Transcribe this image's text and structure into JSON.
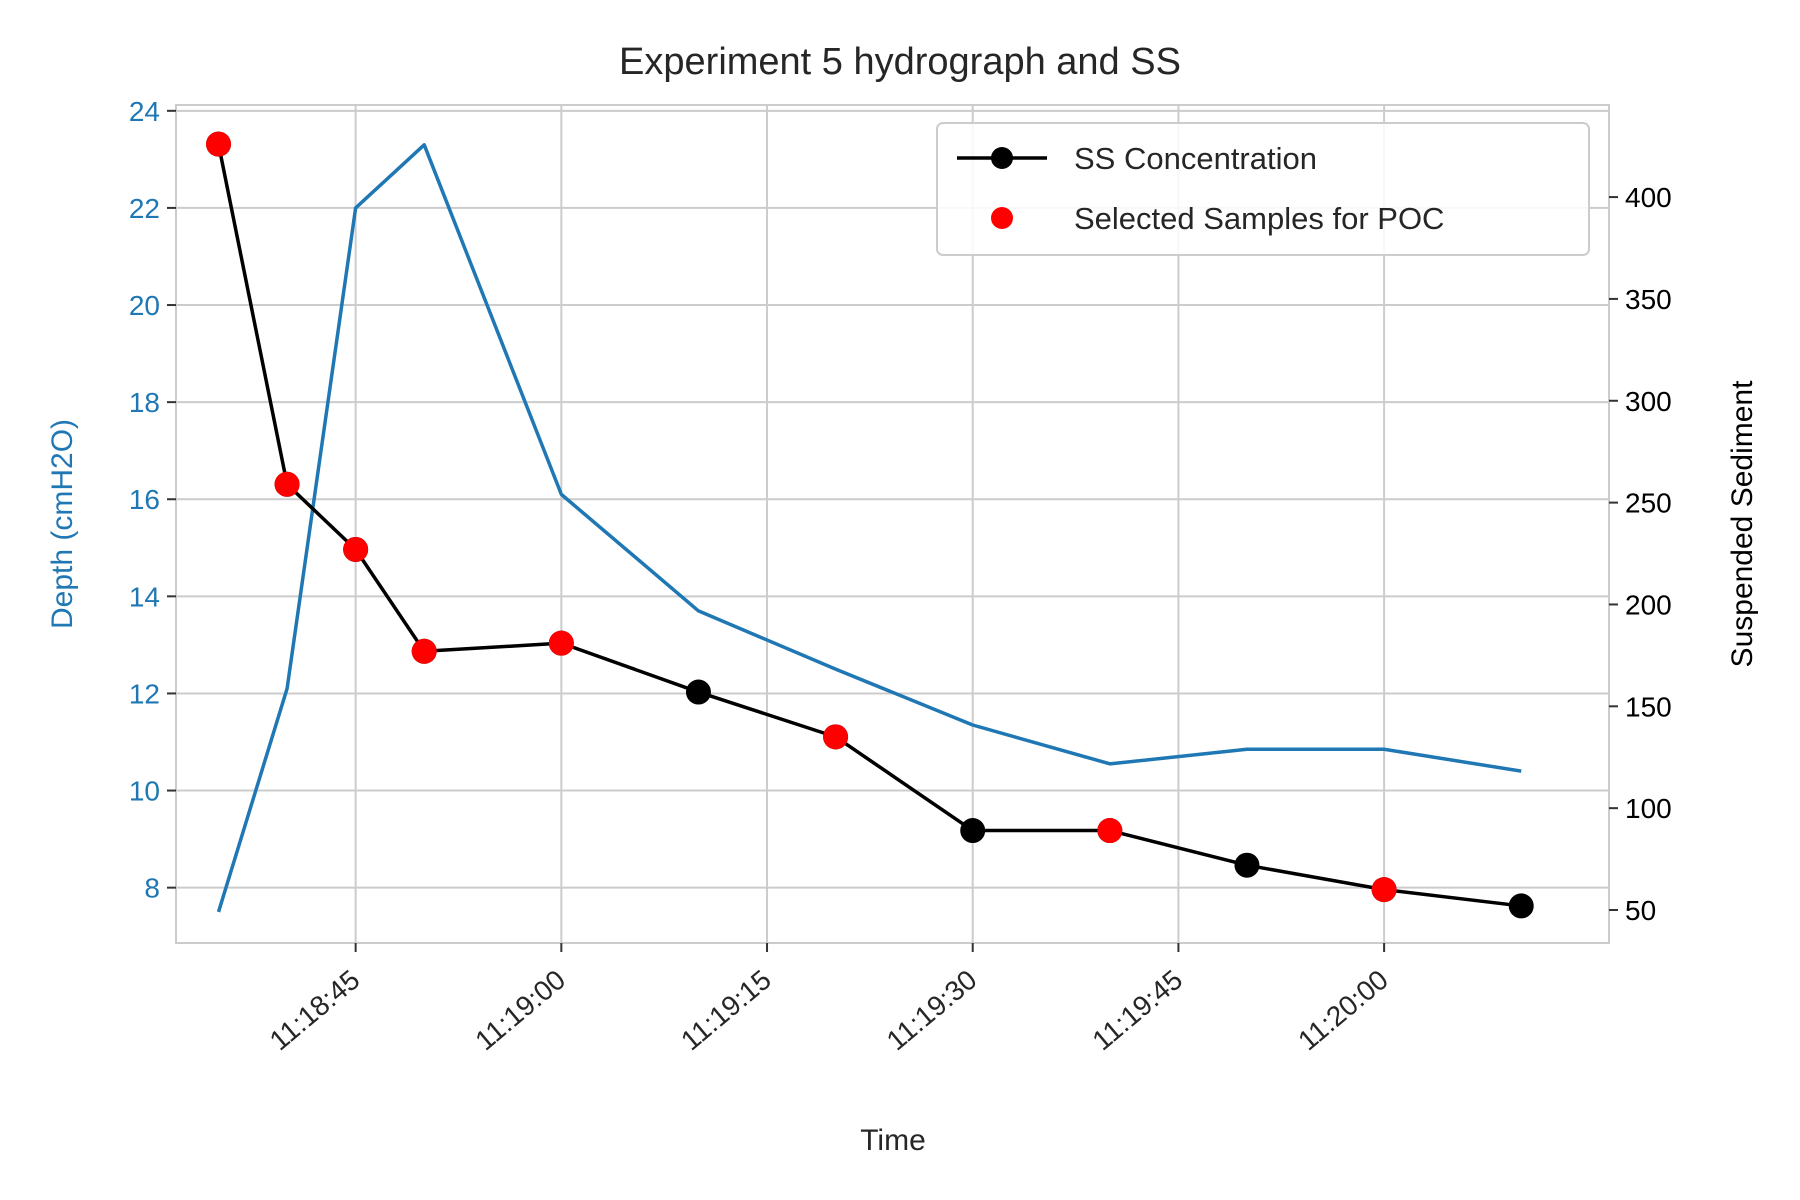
{
  "chart_data": {
    "type": "line",
    "title": "Experiment 5 hydrograph and SS",
    "xlabel": "Time",
    "ylabel_left": "Depth (cmH2O)",
    "ylabel_right": "Suspended Sediment",
    "x_ticks": [
      "11:18:45",
      "11:19:00",
      "11:19:15",
      "11:19:30",
      "11:19:45",
      "11:20:00"
    ],
    "y_left_ticks": [
      "8",
      "10",
      "12",
      "14",
      "16",
      "18",
      "20",
      "22",
      "24"
    ],
    "y_right_ticks": [
      "50",
      "100",
      "150",
      "200",
      "250",
      "300",
      "350",
      "400"
    ],
    "grid": true,
    "legend_position": "top-right",
    "colors": {
      "depth": "#1f77b4",
      "ss": "#000000",
      "selected": "#ff0000",
      "left_axis": "#1f77b4",
      "grid": "#cccccc"
    },
    "series": [
      {
        "key": "depth",
        "axis": "left",
        "x": [
          "11:18:35",
          "11:18:40",
          "11:18:45",
          "11:18:50",
          "11:19:00",
          "11:19:10",
          "11:19:20",
          "11:19:30",
          "11:19:40",
          "11:19:50",
          "11:20:00",
          "11:20:10"
        ],
        "values": [
          7.5,
          12.1,
          22.0,
          23.3,
          16.1,
          13.7,
          12.5,
          11.35,
          10.55,
          10.85,
          10.85,
          10.4
        ]
      },
      {
        "key": "ss",
        "name": "SS Concentration",
        "axis": "right",
        "x": [
          "11:18:35",
          "11:18:40",
          "11:18:45",
          "11:18:50",
          "11:19:00",
          "11:19:10",
          "11:19:20",
          "11:19:30",
          "11:19:40",
          "11:19:50",
          "11:20:00",
          "11:20:10"
        ],
        "values": [
          426,
          259,
          227,
          177,
          181,
          157,
          135,
          89,
          89,
          72,
          60,
          52
        ]
      },
      {
        "key": "selected",
        "name": "Selected Samples for POC",
        "axis": "right",
        "x": [
          "11:18:35",
          "11:18:40",
          "11:18:45",
          "11:18:50",
          "11:19:00",
          "11:19:20",
          "11:19:40",
          "11:20:00"
        ],
        "values": [
          426,
          259,
          227,
          177,
          181,
          135,
          89,
          60
        ]
      }
    ]
  }
}
